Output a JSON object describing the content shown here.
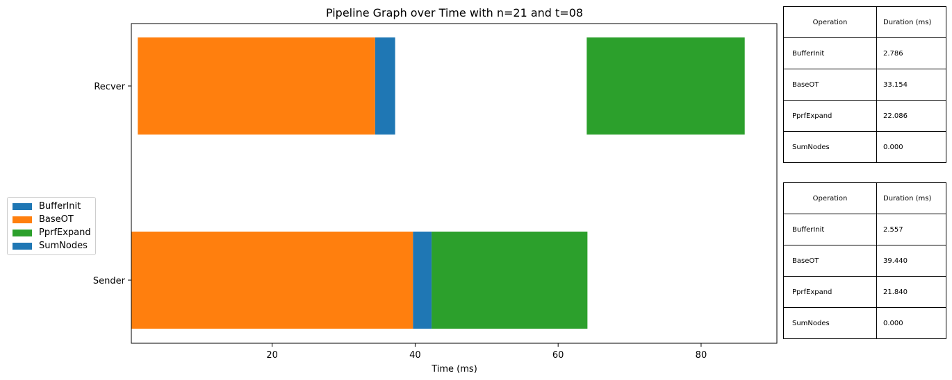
{
  "chart_data": {
    "type": "bar",
    "orientation": "horizontal",
    "stacked": "timeline",
    "title": "Pipeline Graph over Time with n=21 and t=08",
    "xlabel": "Time (ms)",
    "ylabel": "",
    "xlim": [
      0.3,
      90.6
    ],
    "xticks": [
      20,
      40,
      60,
      80
    ],
    "categories": [
      "Recver",
      "Sender"
    ],
    "grid": false,
    "legend_position": "center-left",
    "legend": [
      "BufferInit",
      "BaseOT",
      "PprfExpand",
      "SumNodes"
    ],
    "series_colors": {
      "BufferInit": "#1f77b4",
      "BaseOT": "#ff7f0e",
      "PprfExpand": "#2ca02c",
      "SumNodes": "#1f77b4"
    },
    "segments": [
      {
        "category": "Recver",
        "operation": "BaseOT",
        "start": 1.2,
        "end": 34.4
      },
      {
        "category": "Recver",
        "operation": "BufferInit",
        "start": 34.4,
        "end": 37.2
      },
      {
        "category": "Recver",
        "operation": "PprfExpand",
        "start": 64.0,
        "end": 86.1
      },
      {
        "category": "Sender",
        "operation": "BaseOT",
        "start": 0.3,
        "end": 39.7
      },
      {
        "category": "Sender",
        "operation": "BufferInit",
        "start": 39.7,
        "end": 42.3
      },
      {
        "category": "Sender",
        "operation": "PprfExpand",
        "start": 42.3,
        "end": 64.1
      }
    ]
  },
  "tables": [
    {
      "header": [
        "Operation",
        "Duration (ms)"
      ],
      "rows": [
        [
          "BufferInit",
          "2.786"
        ],
        [
          "BaseOT",
          "33.154"
        ],
        [
          "PprfExpand",
          "22.086"
        ],
        [
          "SumNodes",
          "0.000"
        ]
      ]
    },
    {
      "header": [
        "Operation",
        "Duration (ms)"
      ],
      "rows": [
        [
          "BufferInit",
          "2.557"
        ],
        [
          "BaseOT",
          "39.440"
        ],
        [
          "PprfExpand",
          "21.840"
        ],
        [
          "SumNodes",
          "0.000"
        ]
      ]
    }
  ]
}
